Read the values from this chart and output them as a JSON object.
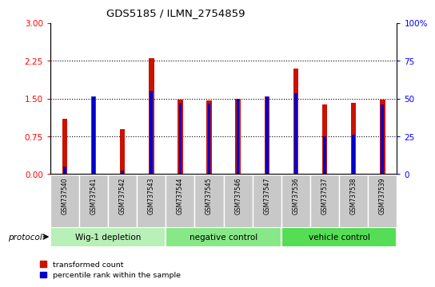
{
  "title": "GDS5185 / ILMN_2754859",
  "samples": [
    "GSM737540",
    "GSM737541",
    "GSM737542",
    "GSM737543",
    "GSM737544",
    "GSM737545",
    "GSM737546",
    "GSM737547",
    "GSM737536",
    "GSM737537",
    "GSM737538",
    "GSM737539"
  ],
  "transformed_count": [
    1.1,
    1.55,
    0.9,
    2.3,
    1.48,
    1.47,
    1.5,
    1.55,
    2.1,
    1.38,
    1.42,
    1.48
  ],
  "percentile_rank_scaled": [
    0.15,
    1.55,
    0.07,
    1.65,
    1.42,
    1.4,
    1.5,
    1.55,
    1.6,
    0.75,
    0.78,
    1.38
  ],
  "groups": [
    {
      "label": "Wig-1 depletion",
      "start": 0,
      "end": 4
    },
    {
      "label": "negative control",
      "start": 4,
      "end": 8
    },
    {
      "label": "vehicle control",
      "start": 8,
      "end": 12
    }
  ],
  "ylim_left": [
    0,
    3
  ],
  "ylim_right": [
    0,
    100
  ],
  "yticks_left": [
    0,
    0.75,
    1.5,
    2.25,
    3
  ],
  "yticks_right": [
    0,
    25,
    50,
    75,
    100
  ],
  "bar_color": "#cc1100",
  "percentile_color": "#0000cc",
  "bar_width": 0.18,
  "blue_bar_width": 0.1,
  "group_color_light": "#b8f0b8",
  "group_color_mid": "#88e888",
  "group_color_dark": "#55dd55",
  "protocol_label": "protocol",
  "legend_tc": "transformed count",
  "legend_pr": "percentile rank within the sample",
  "tick_bg_color": "#c8c8c8"
}
